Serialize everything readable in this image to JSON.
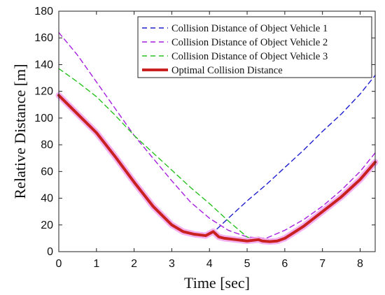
{
  "chart_data": {
    "type": "line",
    "xlabel": "Time [sec]",
    "ylabel": "Relative Distance [m]",
    "xlim": [
      0,
      8.4
    ],
    "ylim": [
      0,
      180
    ],
    "xticks": [
      0,
      1,
      2,
      3,
      4,
      5,
      6,
      7,
      8
    ],
    "yticks": [
      0,
      20,
      40,
      60,
      80,
      100,
      120,
      140,
      160,
      180
    ],
    "grid": false,
    "legend_position": "top-right",
    "series": [
      {
        "name": "Collision Distance of Object Vehicle 1",
        "color": "#1f1fcf",
        "style": "dashed",
        "x": [
          4.2,
          4.5,
          5.0,
          5.5,
          6.0,
          6.5,
          7.0,
          7.5,
          8.0,
          8.4
        ],
        "y": [
          17,
          25,
          38,
          50,
          63,
          76,
          90,
          103,
          118,
          132
        ]
      },
      {
        "name": "Collision Distance of Object Vehicle 2",
        "color": "#a51fe0",
        "style": "dashed",
        "x": [
          0,
          0.5,
          1.0,
          1.5,
          2.0,
          2.5,
          3.0,
          3.5,
          4.0,
          4.5,
          5.0,
          5.5,
          6.0,
          6.5,
          7.0,
          7.5,
          8.0,
          8.4
        ],
        "y": [
          164,
          147,
          127,
          107,
          87,
          70,
          53,
          37,
          25,
          16,
          11,
          10,
          16,
          24,
          34,
          46,
          60,
          74
        ]
      },
      {
        "name": "Collision Distance of Object Vehicle 3",
        "color": "#29c221",
        "style": "dashed",
        "x": [
          0,
          0.5,
          1.0,
          1.5,
          2.0,
          2.5,
          3.0,
          3.5,
          4.0,
          4.5,
          5.0,
          5.3
        ],
        "y": [
          137,
          127,
          116,
          102,
          87,
          74,
          61,
          48,
          36,
          23,
          11,
          8
        ]
      },
      {
        "name": "Optimal Collision Distance",
        "color": "#c8211f",
        "style": "solid",
        "x": [
          0,
          0.5,
          1.0,
          1.5,
          2.0,
          2.5,
          3.0,
          3.3,
          3.6,
          3.9,
          4.1,
          4.25,
          4.4,
          4.7,
          5.0,
          5.3,
          5.4,
          5.6,
          5.8,
          6.0,
          6.5,
          7.0,
          7.5,
          8.0,
          8.4
        ],
        "y": [
          117,
          103,
          89,
          71,
          52,
          34,
          20,
          15,
          13,
          12,
          15,
          11,
          10,
          9,
          8,
          9,
          8,
          7.5,
          8,
          10,
          19,
          30,
          41,
          54,
          67
        ]
      }
    ]
  }
}
